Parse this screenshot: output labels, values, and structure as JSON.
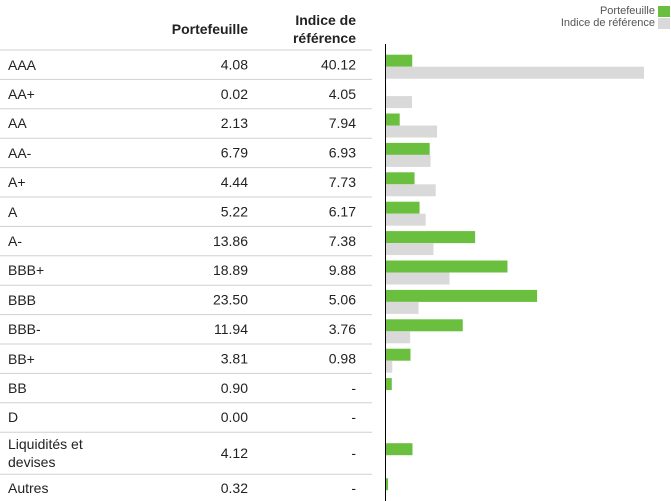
{
  "chart_data": {
    "type": "bar",
    "categories": [
      "AAA",
      "AA+",
      "AA",
      "AA-",
      "A+",
      "A",
      "A-",
      "BBB+",
      "BBB",
      "BBB-",
      "BB+",
      "BB",
      "D",
      "Liquidités et devises",
      "Autres"
    ],
    "series": [
      {
        "name": "Portefeuille",
        "color": "#6abf3f",
        "values": [
          4.08,
          0.02,
          2.13,
          6.79,
          4.44,
          5.22,
          13.86,
          18.89,
          23.5,
          11.94,
          3.81,
          0.9,
          0,
          4.12,
          0.32
        ],
        "value_labels": [
          "4.08",
          "0.02",
          "2.13",
          "6.79",
          "4.44",
          "5.22",
          "13.86",
          "18.89",
          "23.50",
          "11.94",
          "3.81",
          "0.90",
          "0.00",
          "4.12",
          "0.32"
        ]
      },
      {
        "name": "Indice de référence",
        "color": "#d9d9d9",
        "values": [
          40.12,
          4.05,
          7.94,
          6.93,
          7.73,
          6.17,
          7.38,
          9.88,
          5.06,
          3.76,
          0.98,
          null,
          null,
          null,
          null
        ],
        "value_labels": [
          "40.12",
          "4.05",
          "7.94",
          "6.93",
          "7.73",
          "6.17",
          "7.38",
          "9.88",
          "5.06",
          "3.76",
          "0.98",
          "-",
          "-",
          "-",
          "-"
        ]
      }
    ]
  }
}
